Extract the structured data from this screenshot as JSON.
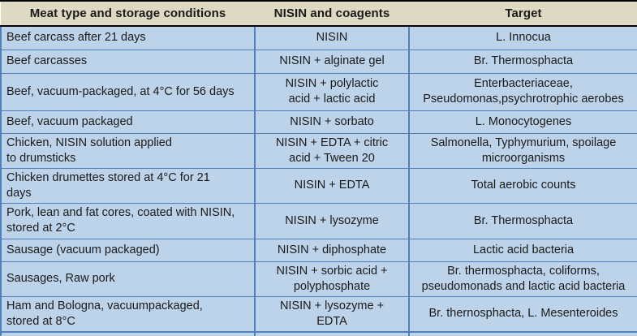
{
  "table": {
    "columns": [
      "Meat type and storage conditions",
      "NISIN and coagents",
      "Target"
    ],
    "rows": [
      {
        "meat": "Beef carcass after 21 days",
        "coagents": "NISIN",
        "target": "L. Innocua"
      },
      {
        "meat": "Beef carcasses",
        "coagents": "NISIN + alginate gel",
        "target": "Br. Thermosphacta"
      },
      {
        "meat": "Beef, vacuum-packaged, at 4°C for 56 days",
        "coagents": "NISIN + polylactic\nacid + lactic acid",
        "target": "Enterbacteriaceae,\nPseudomonas,psychrotrophic aerobes"
      },
      {
        "meat": "Beef, vacuum packaged",
        "coagents": "NISIN + sorbato",
        "target": "L. Monocytogenes"
      },
      {
        "meat": "Chicken, NISIN solution applied\nto drumsticks",
        "coagents": "NISIN + EDTA + citric\nacid + Tween 20",
        "target": "Salmonella, Typhymurium, spoilage\nmicroorganisms"
      },
      {
        "meat": "Chicken drumettes stored at 4°C for 21\ndays",
        "coagents": "NISIN + EDTA",
        "target": "Total aerobic counts"
      },
      {
        "meat": "Pork, lean and fat cores, coated with NISIN,\nstored at 2°C",
        "coagents": "NISIN + lysozyme",
        "target": "Br. Thermosphacta"
      },
      {
        "meat": "Sausage (vacuum packaged)",
        "coagents": "NISIN + diphosphate",
        "target": "Lactic acid bacteria"
      },
      {
        "meat": "Sausages, Raw pork",
        "coagents": "NISIN + sorbic acid +\npolyphosphate",
        "target": "Br. thermosphacta, coliforms,\npseudomonads and lactic acid bacteria"
      },
      {
        "meat": "Ham and Bologna, vacuumpackaged,\nstored at 8°C",
        "coagents": "NISIN + lysozyme +\nEDTA",
        "target": "Br. thernosphacta, L. Mesenteroides"
      }
    ]
  },
  "colors": {
    "header_bg": "#ddd9c3",
    "row_bg": "#bdd3ea",
    "grid": "#4f81bd",
    "frame": "#000000",
    "text": "#1a1a1a"
  }
}
